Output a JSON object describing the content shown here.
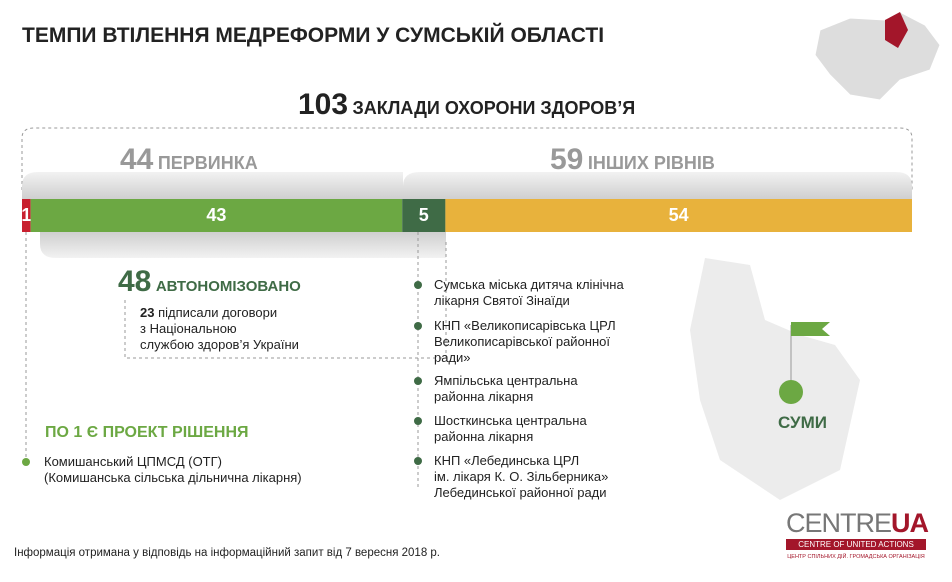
{
  "chart_data": {
    "type": "stacked-bar",
    "title": "ТЕМПИ ВТІЛЕННЯ МЕДРЕФОРМИ У СУМСЬКІЙ ОБЛАСТІ",
    "total": 103,
    "total_label": "ЗАКЛАДИ ОХОРОНИ ЗДОРОВ’Я",
    "groups": [
      {
        "value": 44,
        "label": "ПЕРВИНКА"
      },
      {
        "value": 59,
        "label": "ІНШИХ РІВНІВ"
      }
    ],
    "segments": [
      {
        "value": 1,
        "color": "#c8202f"
      },
      {
        "value": 43,
        "color": "#6ca843"
      },
      {
        "value": 5,
        "color": "#3f6b46"
      },
      {
        "value": 54,
        "color": "#e8b23c"
      }
    ],
    "autonomized": {
      "value": 48,
      "label": "АВТОНОМІЗОВАНО",
      "contracts": 23,
      "contracts_text": "підписали договори\nз Національною\nслужбою здоров’я України"
    },
    "draft": {
      "title": "ПО 1 Є ПРОЕКТ РІШЕННЯ",
      "items": [
        "Комишанський ЦПМСД (ОТГ)\n(Комишанська сільська  дільнична лікарня)"
      ]
    },
    "hospitals": [
      "Сумська міська дитяча клінічна\nлікарня Святої Зінаїди",
      "КНП «Великописарівська ЦРЛ\nВеликописарівської районної\nради»",
      "Ямпільська центральна\nрайонна лікарня",
      "Шосткинська центральна\nрайонна лікарня",
      "КНП «Лебединська ЦРЛ\nім. лікаря К. О. Зільберника»\nЛебединської районної ради"
    ],
    "city": "СУМИ",
    "note": "Інформація отримана у відповідь на інформаційний запит від 7 вересня 2018 р.",
    "logo": {
      "name": "CENTRE",
      "accent": "UA",
      "subtitle": "CENTRE OF UNITED ACTIONS",
      "subtitle_ua": "ЦЕНТР СПІЛЬНИХ ДІЙ. ГРОМАДСЬКА ОРГАНІЗАЦІЯ"
    }
  }
}
